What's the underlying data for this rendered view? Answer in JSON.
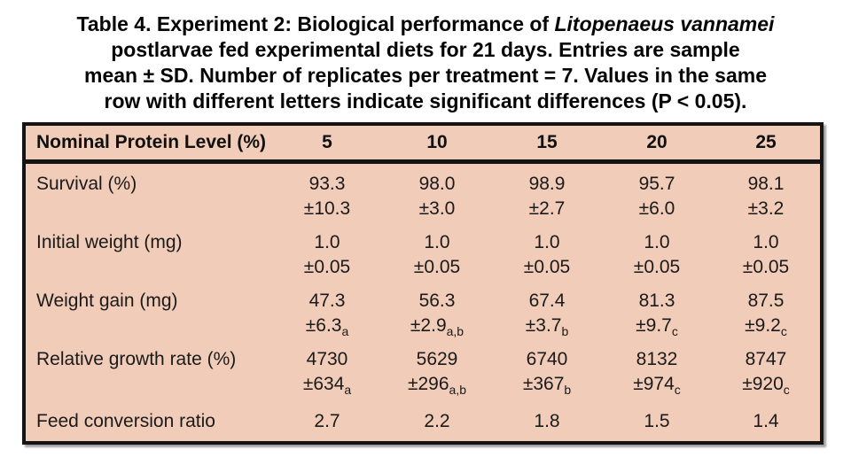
{
  "title": {
    "line1_normal": "Table 4. Experiment 2: Biological performance of ",
    "line1_italic": "Litopenaeus vannamei",
    "line2": "postlarvae fed experimental diets for 21 days. Entries are sample",
    "line3": "mean ± SD. Number of replicates per treatment = 7. Values in the same",
    "line4": "row with different letters indicate significant differences (P < 0.05)."
  },
  "table": {
    "header": {
      "label": "Nominal Protein Level (%)",
      "columns": [
        "5",
        "10",
        "15",
        "20",
        "25"
      ]
    },
    "rows": [
      {
        "label": "Survival (%)",
        "cells": [
          {
            "value": "93.3",
            "sd": "±10.3",
            "sub": ""
          },
          {
            "value": "98.0",
            "sd": "±3.0",
            "sub": ""
          },
          {
            "value": "98.9",
            "sd": "±2.7",
            "sub": ""
          },
          {
            "value": "95.7",
            "sd": "±6.0",
            "sub": ""
          },
          {
            "value": "98.1",
            "sd": "±3.2",
            "sub": ""
          }
        ]
      },
      {
        "label": "Initial weight (mg)",
        "cells": [
          {
            "value": "1.0",
            "sd": "±0.05",
            "sub": ""
          },
          {
            "value": "1.0",
            "sd": "±0.05",
            "sub": ""
          },
          {
            "value": "1.0",
            "sd": "±0.05",
            "sub": ""
          },
          {
            "value": "1.0",
            "sd": "±0.05",
            "sub": ""
          },
          {
            "value": "1.0",
            "sd": "±0.05",
            "sub": ""
          }
        ]
      },
      {
        "label": "Weight gain (mg)",
        "cells": [
          {
            "value": "47.3",
            "sd": "±6.3",
            "sub": "a"
          },
          {
            "value": "56.3",
            "sd": "±2.9",
            "sub": "a,b"
          },
          {
            "value": "67.4",
            "sd": "±3.7",
            "sub": "b"
          },
          {
            "value": "81.3",
            "sd": "±9.7",
            "sub": "c"
          },
          {
            "value": "87.5",
            "sd": "±9.2",
            "sub": "c"
          }
        ]
      },
      {
        "label": "Relative growth rate (%)",
        "cells": [
          {
            "value": "4730",
            "sd": "±634",
            "sub": "a"
          },
          {
            "value": "5629",
            "sd": "±296",
            "sub": "a,b"
          },
          {
            "value": "6740",
            "sd": "±367",
            "sub": "b"
          },
          {
            "value": "8132",
            "sd": "±974",
            "sub": "c"
          },
          {
            "value": "8747",
            "sd": "±920",
            "sub": "c"
          }
        ]
      },
      {
        "label": "Feed conversion ratio",
        "cells": [
          {
            "value": "2.7"
          },
          {
            "value": "2.2"
          },
          {
            "value": "1.8"
          },
          {
            "value": "1.5"
          },
          {
            "value": "1.4"
          }
        ]
      }
    ]
  },
  "colors": {
    "table_fill": "#f1ccb8",
    "border": "#141414",
    "text": "#1a1a1a",
    "page_bg": "#ffffff"
  }
}
